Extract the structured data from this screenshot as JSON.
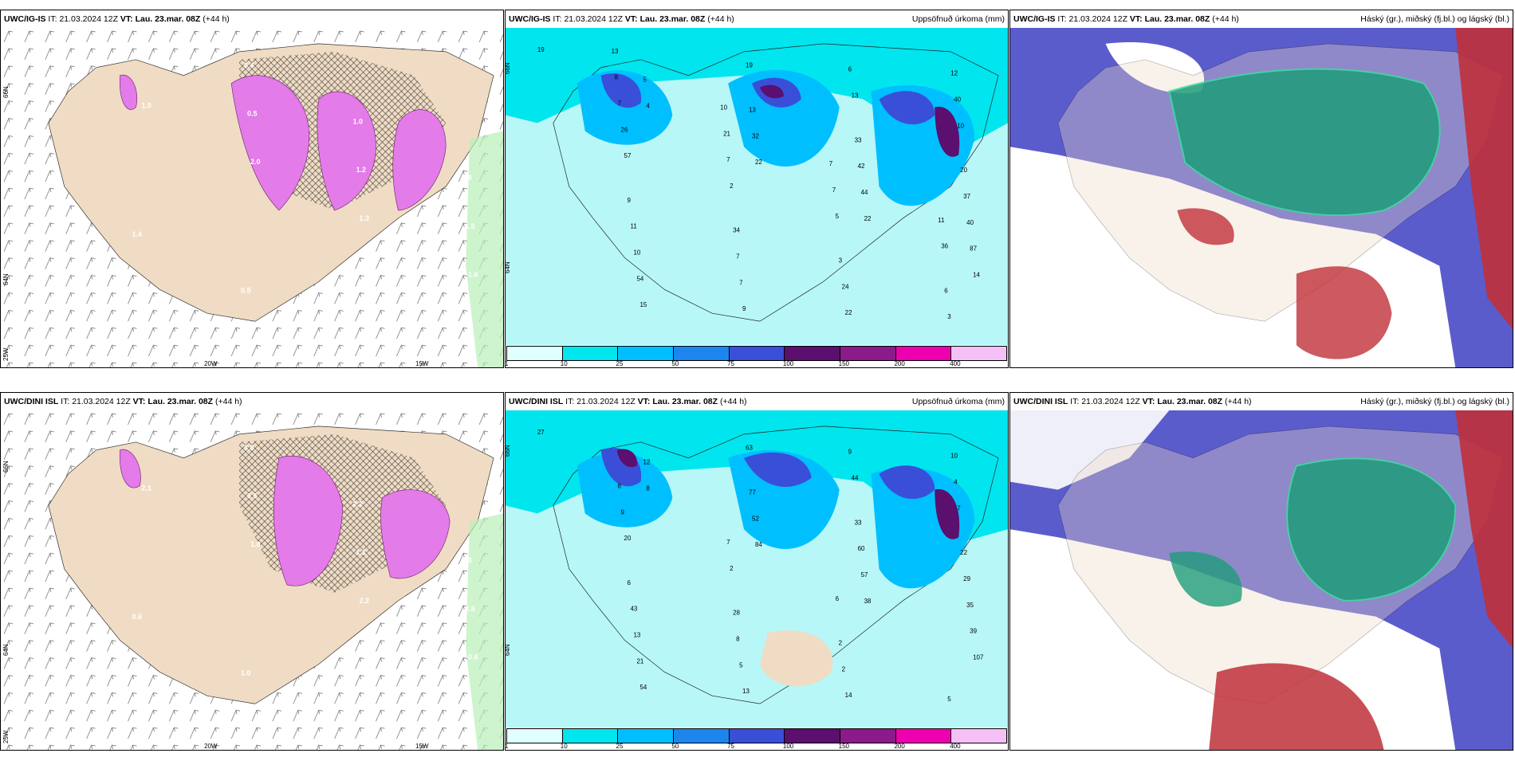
{
  "panels": [
    {
      "id": "r1c1",
      "model": "UWC/IG-IS",
      "it_label": "IT:",
      "it": "21.03.2024 12Z",
      "vt_label": "VT:",
      "vt": "Lau. 23.mar. 08Z",
      "lead": "(+44 h)",
      "field": "",
      "lat_labels": [
        "66N",
        "64N",
        "25W"
      ],
      "lon_labels": [
        "20W",
        "15W"
      ],
      "values": [
        "1.8",
        "1.0",
        "2.0",
        "1.3",
        "1.6",
        "0.9",
        "0.5",
        "1.2",
        "1.5",
        "2.7",
        "0.4",
        "1.0",
        "0.8",
        "1.4",
        "0.5"
      ]
    },
    {
      "id": "r1c2",
      "model": "UWC/IG-IS",
      "it_label": "IT:",
      "it": "21.03.2024 12Z",
      "vt_label": "VT:",
      "vt": "Lau. 23.mar. 08Z",
      "lead": "(+44 h)",
      "field": "Uppsöfnuð úrkoma (mm)",
      "lat_labels": [
        "66N",
        "64N"
      ],
      "values": [
        "19",
        "4",
        "22",
        "22",
        "14",
        "5",
        "32",
        "44",
        "87",
        "15",
        "13",
        "42",
        "40",
        "54",
        "19",
        "33",
        "37",
        "10",
        "9",
        "13",
        "20",
        "11",
        "7",
        "6",
        "10",
        "9",
        "7",
        "22",
        "40",
        "57",
        "34",
        "24",
        "12",
        "26",
        "2",
        "3",
        "3",
        "7",
        "7",
        "5",
        "6",
        "8",
        "21",
        "7",
        "36",
        "13",
        "10",
        "7",
        "11"
      ],
      "colorbar_labels": [
        "1",
        "10",
        "25",
        "50",
        "75",
        "100",
        "150",
        "200",
        "400"
      ],
      "colorbar_colors": [
        "#e0ffff",
        "#00e5ee",
        "#00bfff",
        "#1c86ee",
        "#3a4fd8",
        "#5b0f6e",
        "#8b1a8b",
        "#ee00b0",
        "#f5c0f5"
      ]
    },
    {
      "id": "r1c3",
      "model": "UWC/IG-IS",
      "it_label": "IT:",
      "it": "21.03.2024 12Z",
      "vt_label": "VT:",
      "vt": "Lau. 23.mar. 08Z",
      "lead": "(+44 h)",
      "field": "Háský (gr.), miðský (fj.bl.) og lágský (bl.)"
    },
    {
      "id": "r2c1",
      "model": "UWC/DINI ISL",
      "it_label": "IT:",
      "it": "21.03.2024 12Z",
      "vt_label": "VT:",
      "vt": "Lau. 23.mar. 08Z",
      "lead": "(+44 h)",
      "field": "",
      "lat_labels": [
        "66N",
        "64N",
        "25W"
      ],
      "lon_labels": [
        "20W",
        "15W"
      ],
      "values": [
        "0.9",
        "2.1",
        "1.8",
        "2.2",
        "0.6",
        "2.4",
        "0.5",
        "1.1",
        "2.8",
        "1.7",
        "3.0",
        "2.2",
        "0.3",
        "0.6",
        "1.0"
      ]
    },
    {
      "id": "r2c2",
      "model": "UWC/DINI ISL",
      "it_label": "IT:",
      "it": "21.03.2024 12Z",
      "vt_label": "VT:",
      "vt": "Lau. 23.mar. 08Z",
      "lead": "(+44 h)",
      "field": "Uppsöfnuð úrkoma (mm)",
      "lat_labels": [
        "66N",
        "64N"
      ],
      "values": [
        "27",
        "8",
        "84",
        "38",
        "107",
        "12",
        "52",
        "57",
        "39",
        "54",
        "77",
        "60",
        "35",
        "21",
        "63",
        "33",
        "29",
        "13",
        "13",
        "44",
        "22",
        "43",
        "5",
        "9",
        "7",
        "6",
        "8",
        "14",
        "4",
        "20",
        "28",
        "2",
        "10",
        "9",
        "2",
        "2",
        "5",
        "8",
        "7",
        "6"
      ],
      "colorbar_labels": [
        "1",
        "10",
        "25",
        "50",
        "75",
        "100",
        "150",
        "200",
        "400"
      ],
      "colorbar_colors": [
        "#e0ffff",
        "#00e5ee",
        "#00bfff",
        "#1c86ee",
        "#3a4fd8",
        "#5b0f6e",
        "#8b1a8b",
        "#ee00b0",
        "#f5c0f5"
      ]
    },
    {
      "id": "r2c3",
      "model": "UWC/DINI ISL",
      "it_label": "IT:",
      "it": "21.03.2024 12Z",
      "vt_label": "VT:",
      "vt": "Lau. 23.mar. 08Z",
      "lead": "(+44 h)",
      "field": "Háský (gr.), miðský (fj.bl.) og lágský (bl.)"
    }
  ],
  "colors": {
    "land": "#f0dcc4",
    "sea_precip_low": "#b7f7f7",
    "precip_pink": "#e37be8",
    "cloud_low": "#5b5ccc",
    "cloud_mid": "#1e9c7a",
    "cloud_high": "#c0303a"
  }
}
